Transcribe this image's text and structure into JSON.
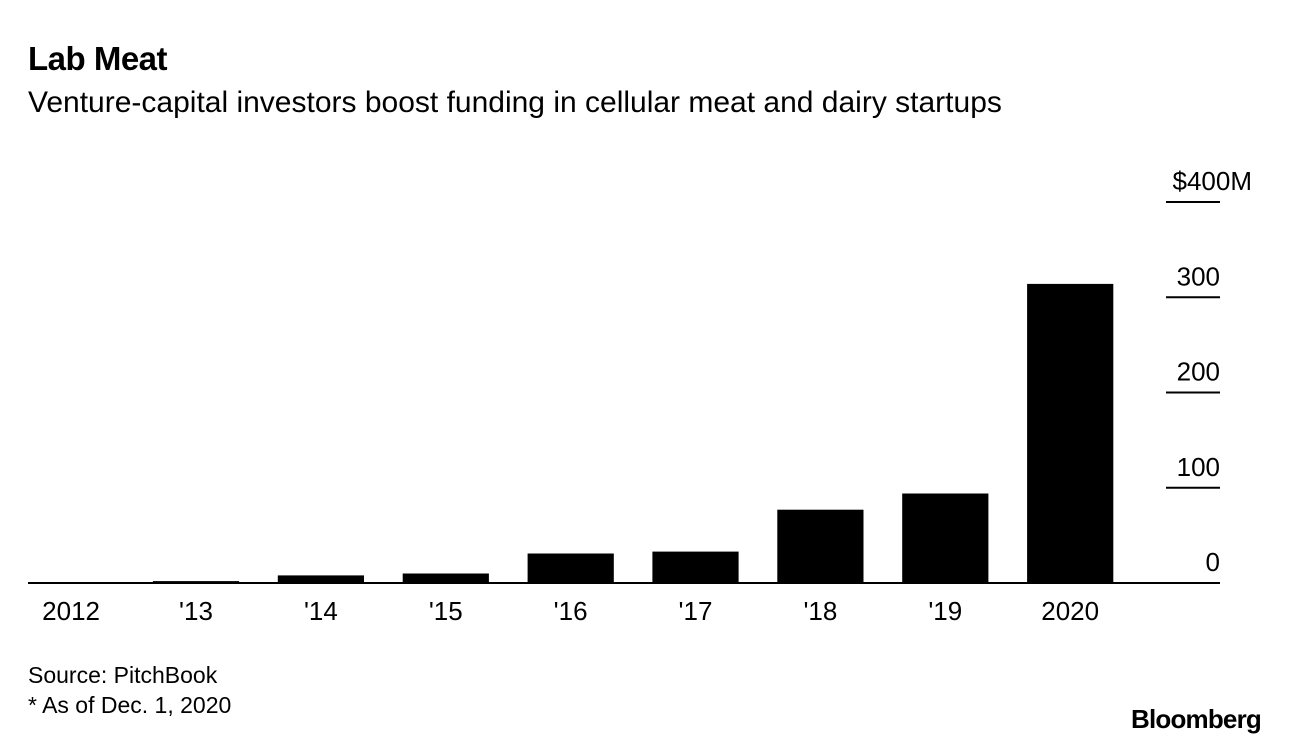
{
  "header": {
    "title": "Lab Meat",
    "subtitle": "Venture-capital investors boost funding in cellular meat and dairy startups"
  },
  "footer": {
    "source": "Source: PitchBook",
    "note": "* As of Dec. 1, 2020",
    "logo": "Bloomberg"
  },
  "chart_data": {
    "type": "bar",
    "title": "Lab Meat",
    "subtitle": "Venture-capital investors boost funding in cellular meat and dairy startups",
    "categories": [
      "2012",
      "'13",
      "'14",
      "'15",
      "'16",
      "'17",
      "'18",
      "'19",
      "2020"
    ],
    "values": [
      1,
      2,
      8,
      10,
      31,
      33,
      77,
      94,
      314
    ],
    "y_unit": "$M",
    "ylim": [
      0,
      400
    ],
    "y_ticks": [
      0,
      100,
      200,
      300,
      400
    ],
    "y_tick_labels": [
      "0",
      "100",
      "200",
      "300",
      "$400M"
    ],
    "y_axis_position": "right",
    "grid": false,
    "bar_color": "#000000"
  }
}
